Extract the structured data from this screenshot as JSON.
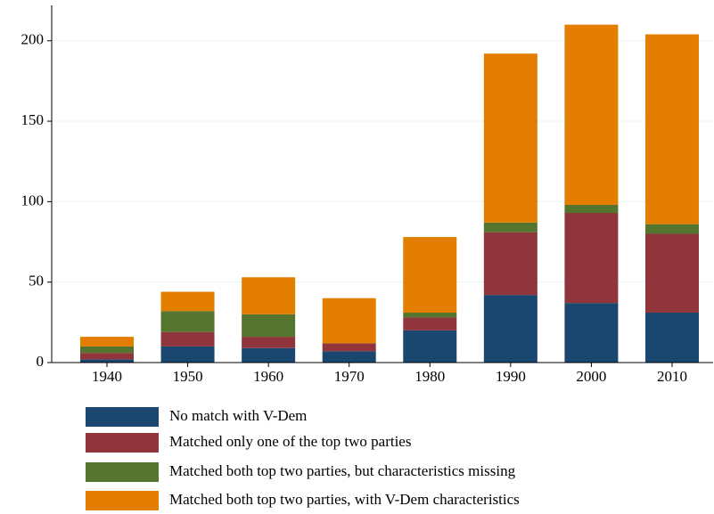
{
  "chart_data": {
    "type": "stacked_bar",
    "categories": [
      "1940",
      "1950",
      "1960",
      "1970",
      "1980",
      "1990",
      "2000",
      "2010"
    ],
    "series": [
      {
        "name": "No match with V-Dem",
        "color": "#1a476f",
        "values": [
          2,
          10,
          9,
          7,
          20,
          42,
          37,
          31
        ]
      },
      {
        "name": "Matched only one of the top two parties",
        "color": "#90353b",
        "values": [
          4,
          9,
          7,
          5,
          8,
          39,
          56,
          49
        ]
      },
      {
        "name": "Matched both top two parties, but characteristics missing",
        "color": "#55752f",
        "values": [
          4,
          13,
          14,
          0,
          3,
          6,
          5,
          6
        ]
      },
      {
        "name": "Matched both top two parties, with V-Dem characteristics",
        "color": "#e37e00",
        "values": [
          6,
          12,
          23,
          28,
          47,
          105,
          112,
          118
        ]
      }
    ],
    "ylim": [
      0,
      222
    ],
    "yticks": [
      0,
      50,
      100,
      150,
      200
    ],
    "grid": true
  }
}
